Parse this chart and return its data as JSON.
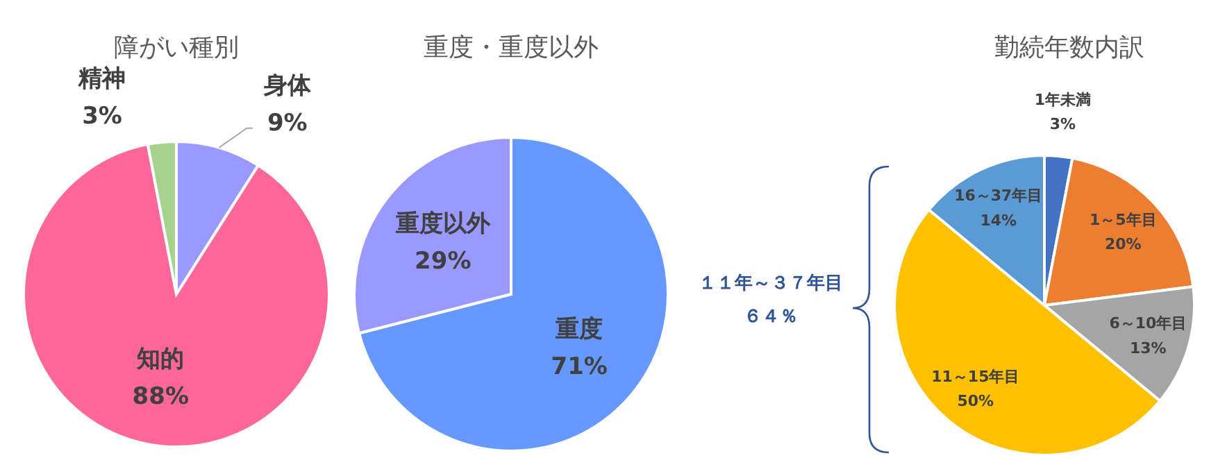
{
  "chart_data": [
    {
      "type": "pie",
      "title": "障がい種別",
      "categories": [
        "身体",
        "知的",
        "精神"
      ],
      "values": [
        9,
        88,
        3
      ],
      "value_labels": [
        "9%",
        "88%",
        "3%"
      ],
      "colors": [
        "#9999ff",
        "#ff6699",
        "#a9d18e"
      ]
    },
    {
      "type": "pie",
      "title": "重度・重度以外",
      "categories": [
        "重度",
        "重度以外"
      ],
      "values": [
        71,
        29
      ],
      "value_labels": [
        "71%",
        "29%"
      ],
      "colors": [
        "#6699ff",
        "#9999ff"
      ]
    },
    {
      "type": "pie",
      "title": "勤続年数内訳",
      "categories": [
        "1年未満",
        "1～5年目",
        "6～10年目",
        "11～15年目",
        "16～37年目"
      ],
      "values": [
        3,
        20,
        13,
        50,
        14
      ],
      "value_labels": [
        "3%",
        "20%",
        "13%",
        "50%",
        "14%"
      ],
      "colors": [
        "#4472c4",
        "#ed7d31",
        "#a5a5a5",
        "#ffc000",
        "#5b9bd5"
      ],
      "annotations": [
        "１１年～３７年目",
        "６４％"
      ]
    }
  ]
}
